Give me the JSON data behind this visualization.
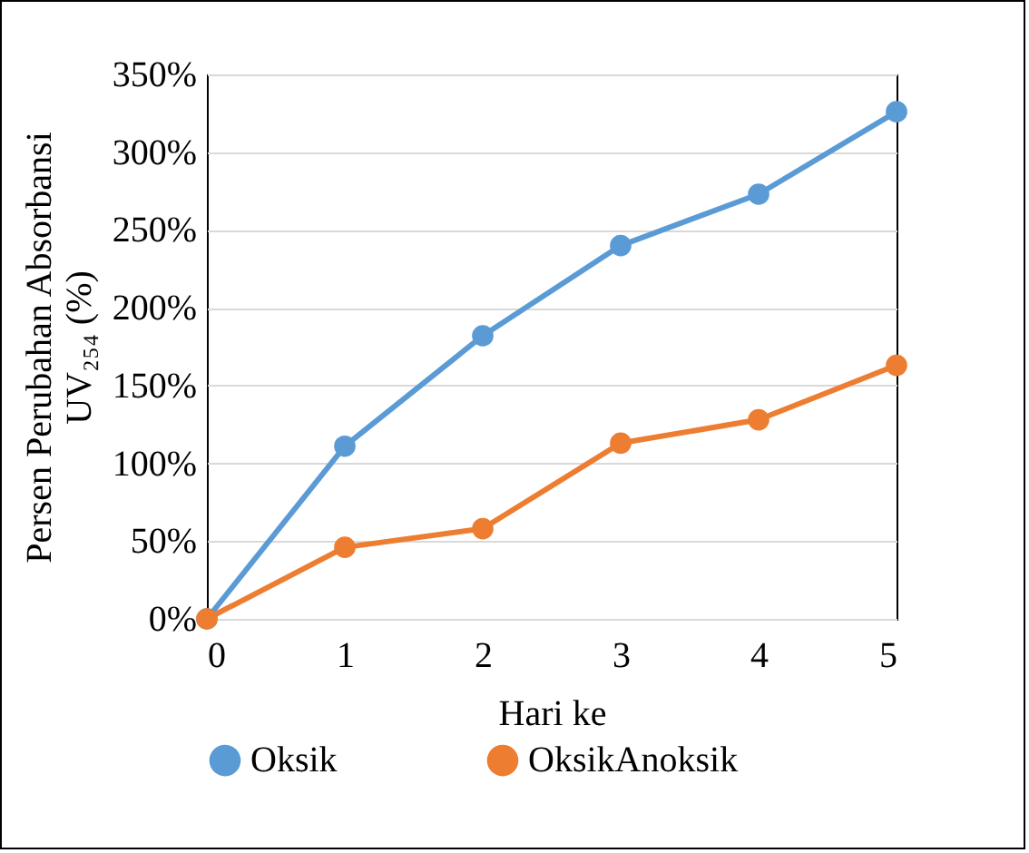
{
  "chart_data": {
    "type": "line",
    "xlabel": "Hari ke",
    "ylabel": "Persen Perubahan Absorbansi UV₂₅₄ (%)",
    "x": [
      0,
      1,
      2,
      3,
      4,
      5
    ],
    "xlim": [
      0,
      5
    ],
    "xticks": [
      0,
      1,
      2,
      3,
      4,
      5
    ],
    "ylim": [
      0,
      350
    ],
    "yticks": [
      {
        "value": 0,
        "label": "0%"
      },
      {
        "value": 50,
        "label": "50%"
      },
      {
        "value": 100,
        "label": "100%"
      },
      {
        "value": 150,
        "label": "150%"
      },
      {
        "value": 200,
        "label": "200%"
      },
      {
        "value": 250,
        "label": "250%"
      },
      {
        "value": 300,
        "label": "300%"
      },
      {
        "value": 350,
        "label": "350%"
      }
    ],
    "grid": "y",
    "legend": "bottom",
    "marker": "circle",
    "line_style": "solid",
    "series": [
      {
        "name": "Oksik",
        "color": "#5b9bd5",
        "values": [
          0,
          111,
          182,
          240,
          273,
          326
        ]
      },
      {
        "name": "OksikAnoksik",
        "color": "#ed7d31",
        "values": [
          0,
          46,
          58,
          113,
          128,
          163
        ]
      }
    ]
  }
}
